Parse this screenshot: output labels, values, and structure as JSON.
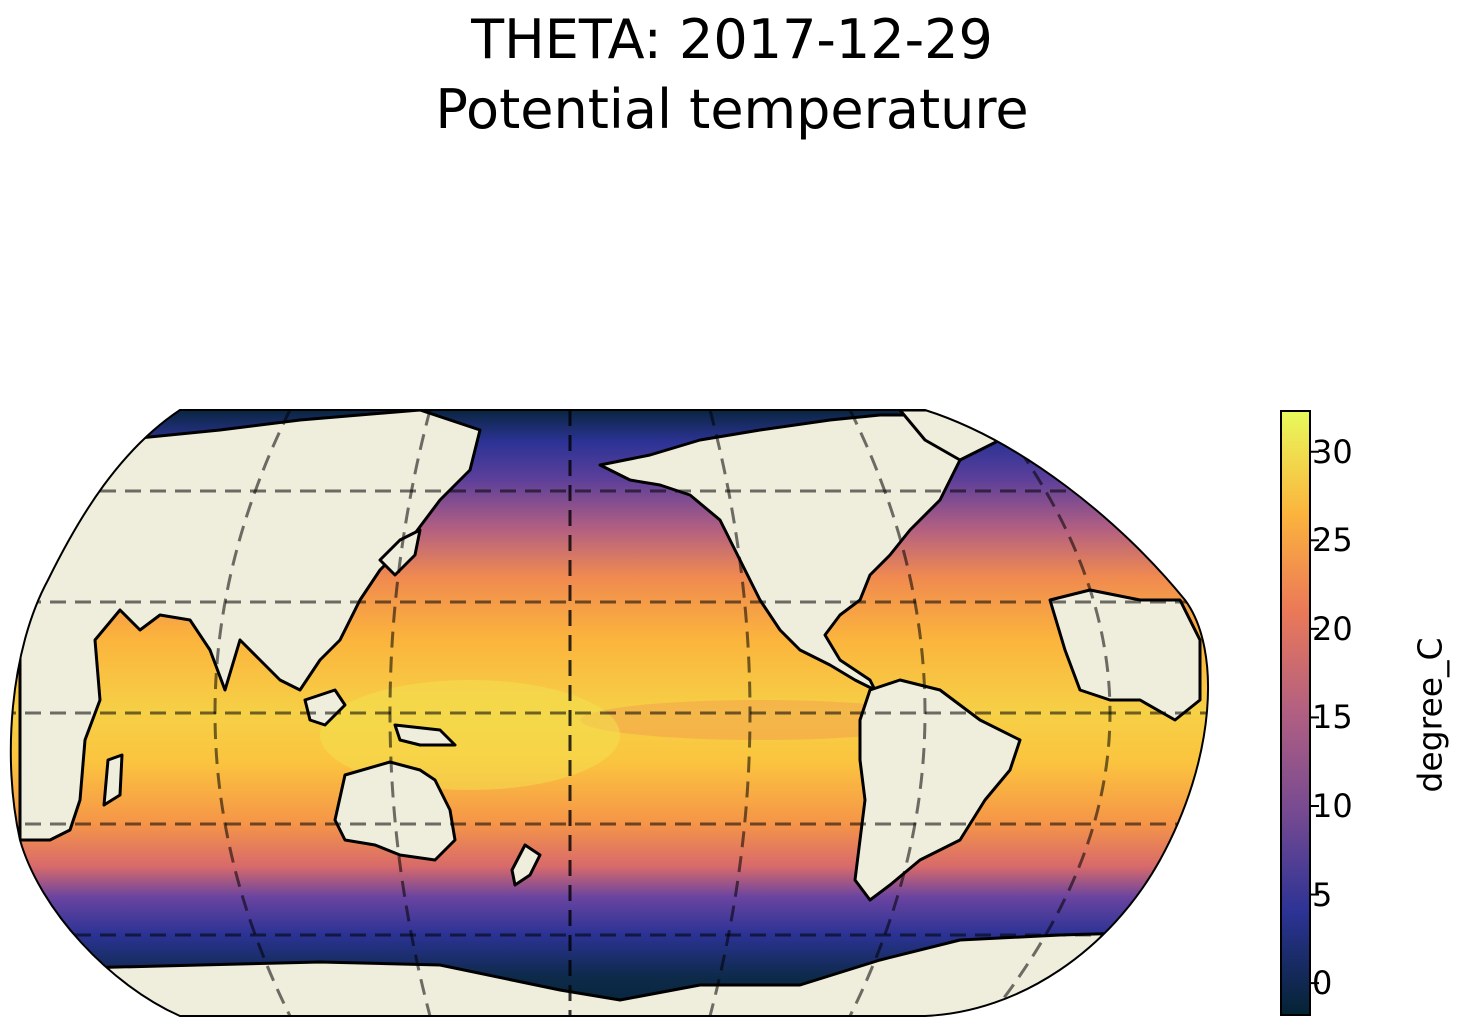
{
  "title": {
    "line1": "THETA: 2017-12-29",
    "line2": "Potential temperature"
  },
  "map": {
    "projection": "Robinson",
    "central_longitude": 180,
    "field": "sea surface potential temperature",
    "gridlines": "dashed",
    "land_color": "#efeddb",
    "coastlines": true
  },
  "colorbar": {
    "label": "degree_C",
    "min": -1.8,
    "max": 32.3,
    "colormap": "thermal",
    "colors": [
      "#042333",
      "#2c3395",
      "#744992",
      "#b15f82",
      "#eb7958",
      "#fbb43d",
      "#e8fa5b"
    ],
    "ticks": [
      {
        "value": 0,
        "label": "0"
      },
      {
        "value": 5,
        "label": "5"
      },
      {
        "value": 10,
        "label": "10"
      },
      {
        "value": 15,
        "label": "15"
      },
      {
        "value": 20,
        "label": "20"
      },
      {
        "value": 25,
        "label": "25"
      },
      {
        "value": 30,
        "label": "30"
      }
    ]
  }
}
